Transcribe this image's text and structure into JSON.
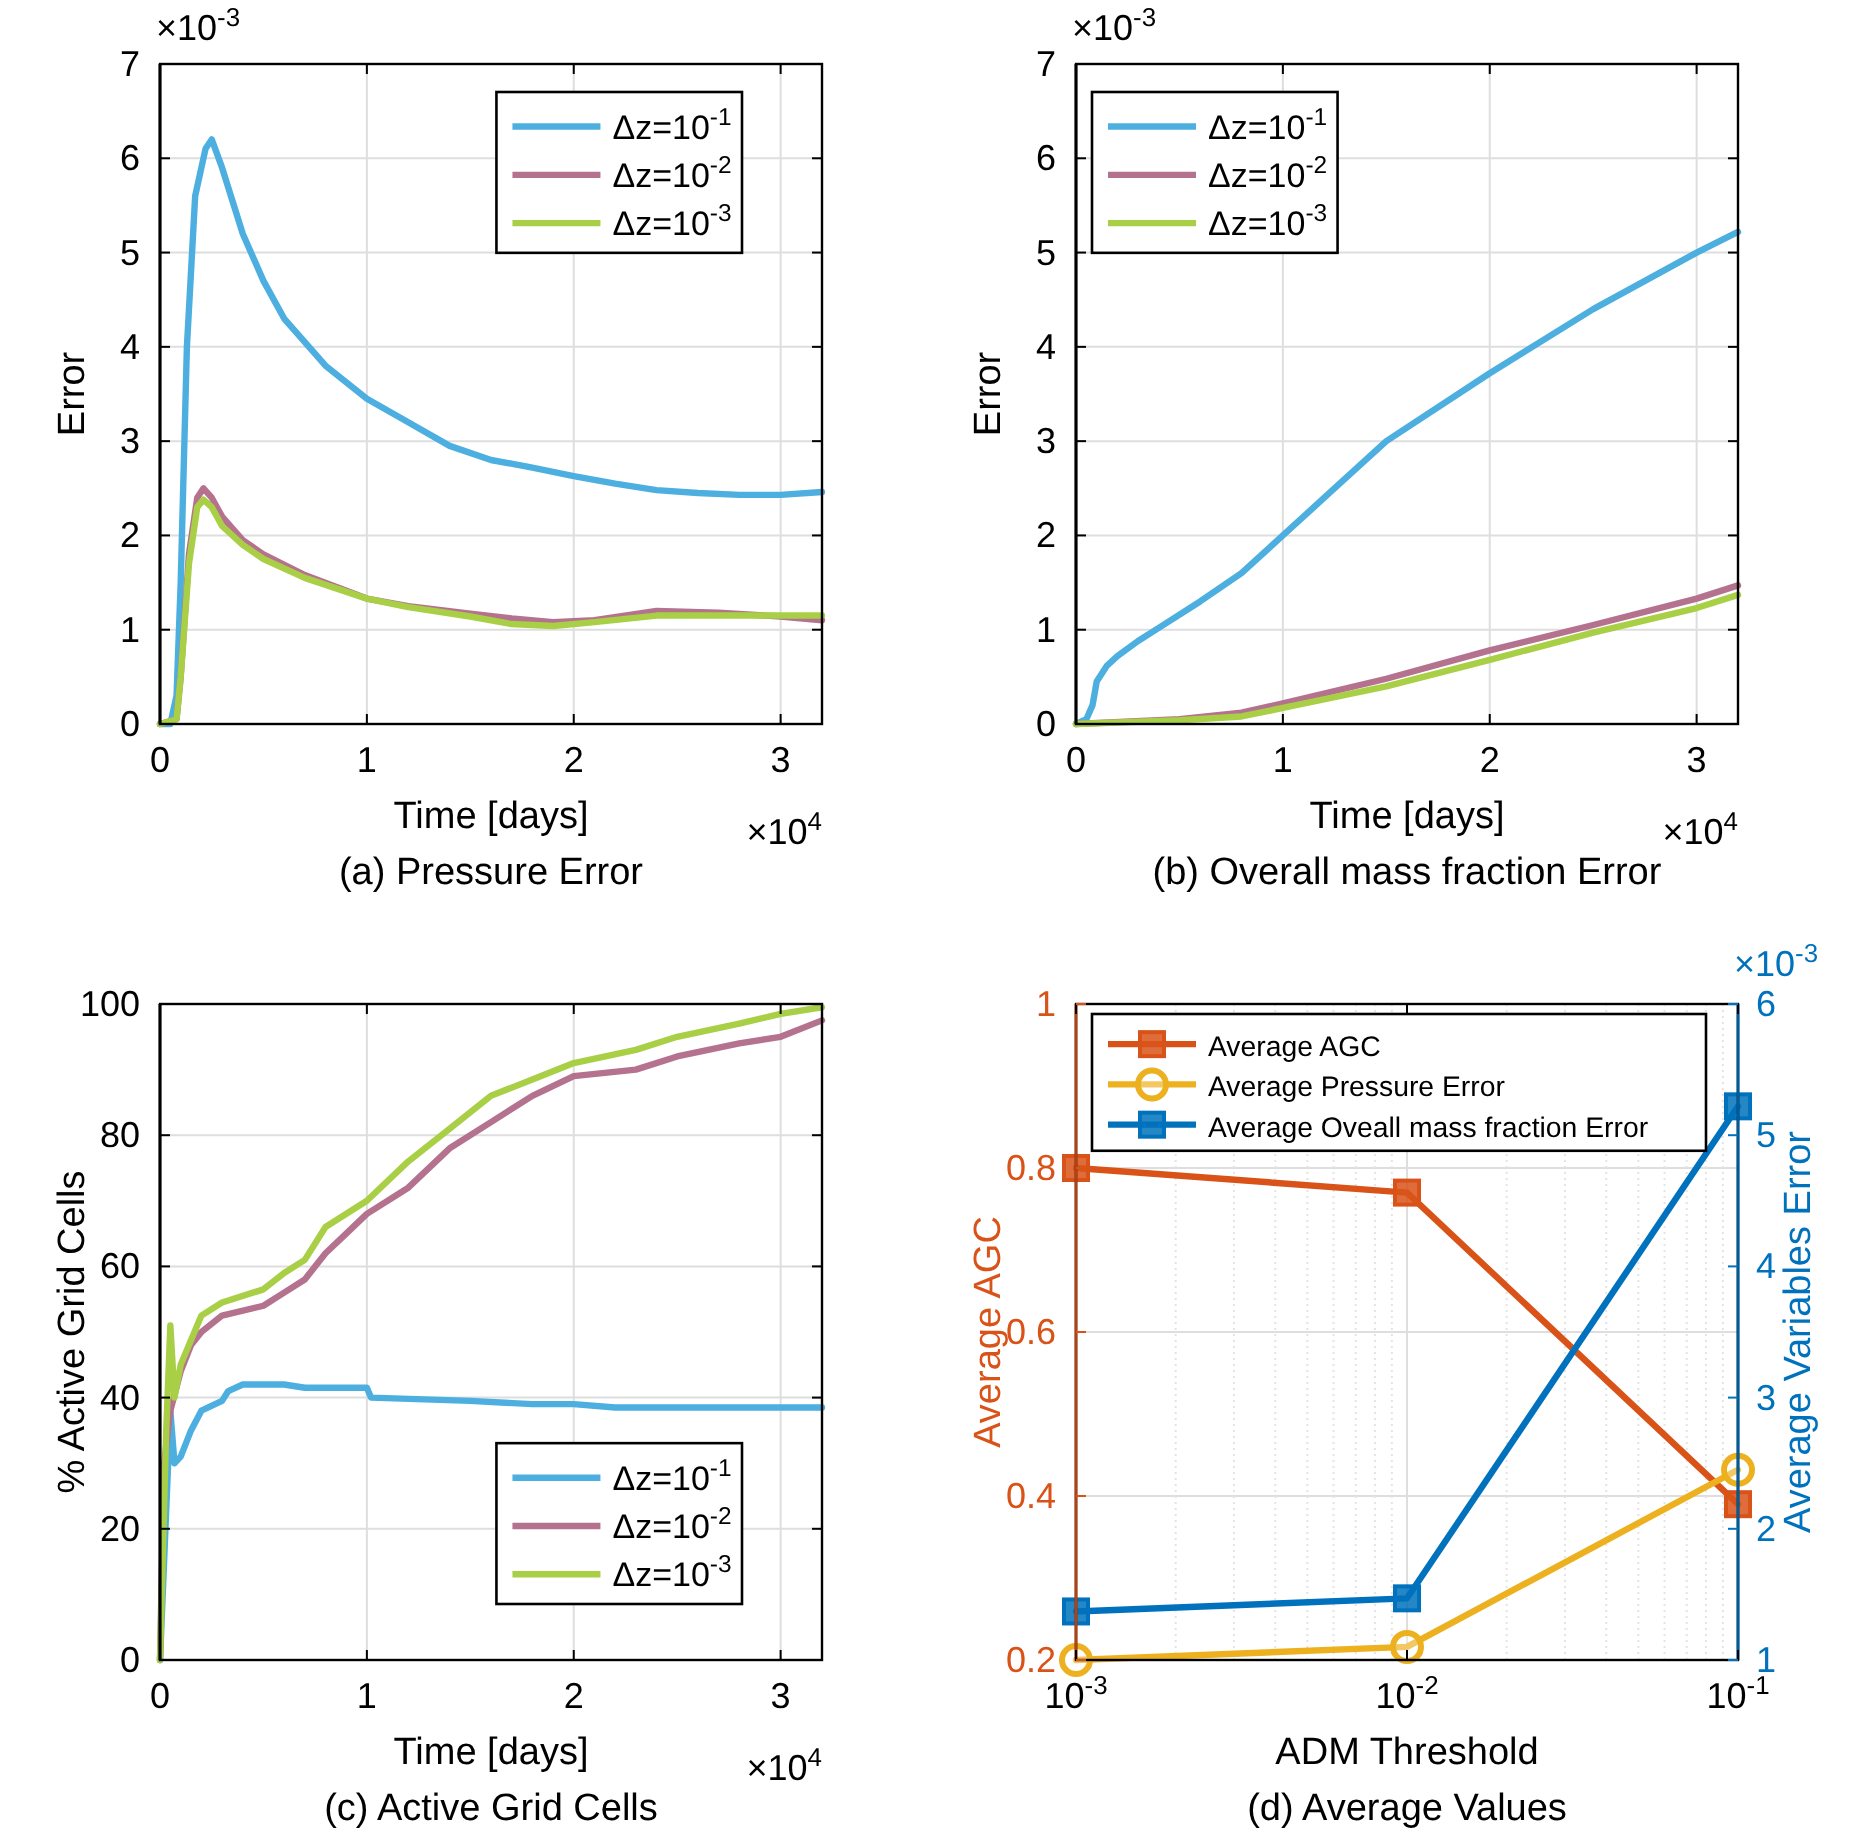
{
  "chart_data": [
    {
      "type": "line",
      "title": "(a) Pressure Error",
      "xlabel": "Time [days]",
      "ylabel": "Error",
      "annotations": [
        "×10$^{-3}$",
        "×10$^{4}$"
      ],
      "xlim": [
        0,
        3.2
      ],
      "xticks": [
        0,
        1,
        2,
        3
      ],
      "ylim": [
        0,
        7
      ],
      "yticks": [
        0,
        1,
        2,
        3,
        4,
        5,
        6,
        7
      ],
      "grid": true,
      "legend": "top right",
      "series": [
        {
          "name": "Δz=10$^{-1}$",
          "color": "#4dafe0",
          "x": [
            0,
            0.05,
            0.08,
            0.1,
            0.13,
            0.17,
            0.22,
            0.25,
            0.3,
            0.4,
            0.5,
            0.6,
            0.8,
            1.0,
            1.2,
            1.4,
            1.6,
            1.8,
            2.0,
            2.2,
            2.4,
            2.6,
            2.8,
            3.0,
            3.2
          ],
          "values": [
            0,
            0,
            0.3,
            1.5,
            4,
            5.6,
            6.1,
            6.2,
            5.9,
            5.2,
            4.7,
            4.3,
            3.8,
            3.45,
            3.2,
            2.95,
            2.8,
            2.72,
            2.63,
            2.55,
            2.48,
            2.45,
            2.43,
            2.43,
            2.46
          ]
        },
        {
          "name": "Δz=10$^{-2}$",
          "color": "#b5728f",
          "x": [
            0,
            0.08,
            0.1,
            0.14,
            0.18,
            0.21,
            0.25,
            0.3,
            0.4,
            0.5,
            0.7,
            1.0,
            1.2,
            1.5,
            1.7,
            1.9,
            2.1,
            2.4,
            2.7,
            3.0,
            3.2
          ],
          "values": [
            0,
            0.05,
            0.5,
            1.8,
            2.4,
            2.5,
            2.4,
            2.2,
            1.95,
            1.8,
            1.58,
            1.33,
            1.25,
            1.17,
            1.12,
            1.08,
            1.1,
            1.2,
            1.18,
            1.14,
            1.1
          ]
        },
        {
          "name": "Δz=10$^{-3}$",
          "color": "#a8cf45",
          "x": [
            0,
            0.08,
            0.1,
            0.14,
            0.18,
            0.21,
            0.25,
            0.3,
            0.4,
            0.5,
            0.7,
            1.0,
            1.2,
            1.5,
            1.7,
            1.9,
            2.1,
            2.4,
            2.7,
            3.0,
            3.2
          ],
          "values": [
            0,
            0.05,
            0.5,
            1.7,
            2.3,
            2.38,
            2.3,
            2.1,
            1.9,
            1.75,
            1.55,
            1.33,
            1.24,
            1.14,
            1.06,
            1.04,
            1.08,
            1.15,
            1.15,
            1.15,
            1.15
          ]
        }
      ]
    },
    {
      "type": "line",
      "title": "(b) Overall mass fraction Error",
      "xlabel": "Time [days]",
      "ylabel": "Error",
      "annotations": [
        "×10$^{-3}$",
        "×10$^{4}$"
      ],
      "xlim": [
        0,
        3.2
      ],
      "xticks": [
        0,
        1,
        2,
        3
      ],
      "ylim": [
        0,
        7
      ],
      "yticks": [
        0,
        1,
        2,
        3,
        4,
        5,
        6,
        7
      ],
      "grid": true,
      "legend": "top left",
      "series": [
        {
          "name": "Δz=10$^{-1}$",
          "color": "#4dafe0",
          "x": [
            0,
            0.05,
            0.08,
            0.1,
            0.15,
            0.2,
            0.3,
            0.4,
            0.6,
            0.8,
            1.0,
            1.2,
            1.5,
            2.0,
            2.5,
            3.0,
            3.2
          ],
          "values": [
            0,
            0.05,
            0.2,
            0.45,
            0.62,
            0.72,
            0.88,
            1.02,
            1.3,
            1.6,
            2.0,
            2.4,
            3.0,
            3.72,
            4.4,
            5.0,
            5.22
          ]
        },
        {
          "name": "Δz=10$^{-2}$",
          "color": "#b5728f",
          "x": [
            0,
            0.5,
            0.8,
            1.0,
            1.5,
            2.0,
            2.5,
            3.0,
            3.2
          ],
          "values": [
            0,
            0.05,
            0.12,
            0.22,
            0.48,
            0.78,
            1.05,
            1.33,
            1.47
          ]
        },
        {
          "name": "Δz=10$^{-3}$",
          "color": "#a8cf45",
          "x": [
            0,
            0.5,
            0.8,
            1.0,
            1.5,
            2.0,
            2.5,
            3.0,
            3.2
          ],
          "values": [
            0,
            0.04,
            0.08,
            0.17,
            0.4,
            0.68,
            0.97,
            1.23,
            1.37
          ]
        }
      ]
    },
    {
      "type": "line",
      "title": "(c) Active Grid Cells",
      "xlabel": "Time [days]",
      "ylabel": "% Active Grid Cells",
      "annotations": [
        null,
        "×10$^{4}$"
      ],
      "xlim": [
        0,
        3.2
      ],
      "xticks": [
        0,
        1,
        2,
        3
      ],
      "ylim": [
        0,
        100
      ],
      "yticks": [
        0,
        20,
        40,
        60,
        80,
        100
      ],
      "grid": true,
      "legend": "bottom right",
      "series": [
        {
          "name": "Δz=10$^{-1}$",
          "color": "#4dafe0",
          "x": [
            0,
            0.05,
            0.07,
            0.1,
            0.15,
            0.2,
            0.3,
            0.33,
            0.4,
            0.6,
            0.7,
            1.0,
            1.02,
            1.5,
            1.8,
            2.0,
            2.2,
            3.2
          ],
          "values": [
            0,
            38,
            30,
            31,
            35,
            38,
            39.5,
            41,
            42,
            42,
            41.5,
            41.5,
            40,
            39.5,
            39,
            39,
            38.5,
            38.5
          ]
        },
        {
          "name": "Δz=10$^{-2}$",
          "color": "#b5728f",
          "x": [
            0,
            0.02,
            0.05,
            0.1,
            0.15,
            0.2,
            0.3,
            0.5,
            0.6,
            0.7,
            0.8,
            0.9,
            1.0,
            1.2,
            1.4,
            1.6,
            1.8,
            2.0,
            2.3,
            2.5,
            2.8,
            3.0,
            3.2
          ],
          "values": [
            0,
            30,
            38,
            44,
            48,
            50,
            52.5,
            54,
            56,
            58,
            62,
            65,
            68,
            72,
            78,
            82,
            86,
            89,
            90,
            92,
            94,
            95,
            97.5
          ]
        },
        {
          "name": "Δz=10$^{-3}$",
          "color": "#a8cf45",
          "x": [
            0,
            0.03,
            0.05,
            0.07,
            0.1,
            0.2,
            0.3,
            0.5,
            0.6,
            0.7,
            0.8,
            1.0,
            1.2,
            1.4,
            1.6,
            1.8,
            2.0,
            2.3,
            2.5,
            2.8,
            3.0,
            3.2
          ],
          "values": [
            0,
            35,
            51,
            40,
            45,
            52.5,
            54.5,
            56.5,
            59,
            61,
            66,
            70,
            76,
            81,
            86,
            88.5,
            91,
            93,
            95,
            97,
            98.5,
            99.5
          ]
        }
      ]
    },
    {
      "type": "line",
      "title": "(d) Average Values",
      "xlabel": "ADM Threshold",
      "ylabel": "Average AGC",
      "y2label": "Average Variables Error",
      "annotations": [
        "×10$^{-3}$"
      ],
      "log": "x",
      "xlim": [
        0.001,
        0.1
      ],
      "xticks": [
        {
          "value": 0.001,
          "label": "10$^{-3}$"
        },
        {
          "value": 0.01,
          "label": "10$^{-2}$"
        },
        {
          "value": 0.1,
          "label": "10$^{-1}$"
        }
      ],
      "ylim": [
        0.2,
        1
      ],
      "yticks": [
        0.2,
        0.4,
        0.6,
        0.8,
        1
      ],
      "y2lim": [
        1,
        6
      ],
      "y2ticks": [
        1,
        2,
        3,
        4,
        5,
        6
      ],
      "grid": true,
      "legend": "top left",
      "x": [
        0.001,
        0.01,
        0.1
      ],
      "series": [
        {
          "name": "Average AGC",
          "color": "#d95319",
          "marker": "square",
          "values": [
            0.8,
            0.77,
            0.39
          ]
        },
        {
          "name": "Average Pressure Error",
          "color": "#edb120",
          "marker": "circle",
          "axis": "y2",
          "values": [
            1.0,
            1.1,
            2.45
          ]
        },
        {
          "name": "Average Oveall mass fraction Error",
          "color": "#0072bd",
          "marker": "square",
          "axis": "y2",
          "values": [
            1.37,
            1.47,
            5.22
          ]
        }
      ]
    }
  ]
}
